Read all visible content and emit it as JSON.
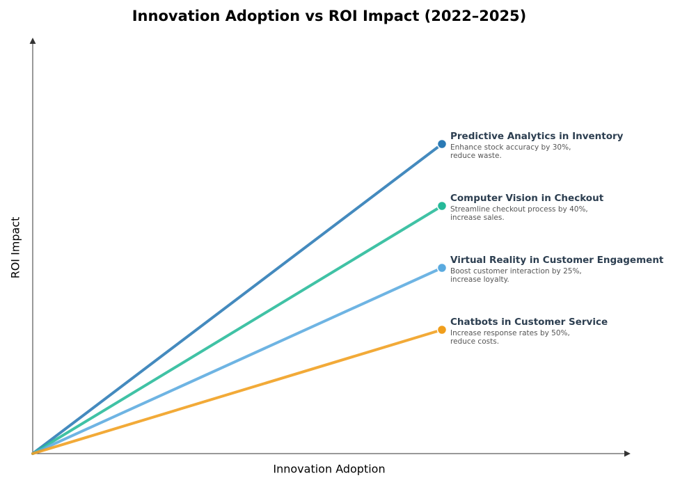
{
  "chart_data": {
    "type": "diagram",
    "title": "Innovation Adoption vs ROI Impact (2022–2025)",
    "x_label": "Innovation Adoption",
    "y_label": "ROI Impact",
    "items": [
      {
        "name": "Predictive Analytics in Inventory",
        "description": [
          "Enhance stock accuracy by 30%,",
          "reduce waste."
        ],
        "color": "#2a7ab5"
      },
      {
        "name": "Computer Vision in Checkout",
        "description": [
          "Streamline checkout process by 40%,",
          "increase sales."
        ],
        "color": "#26b999"
      },
      {
        "name": "Virtual Reality in Customer Engagement",
        "description": [
          "Boost customer interaction by 25%,",
          "increase loyalty."
        ],
        "color": "#5aaadf"
      },
      {
        "name": "Chatbots in Customer Service",
        "description": [
          "Increase response rates by 50%,",
          "reduce costs."
        ],
        "color": "#f09e1c"
      }
    ]
  }
}
